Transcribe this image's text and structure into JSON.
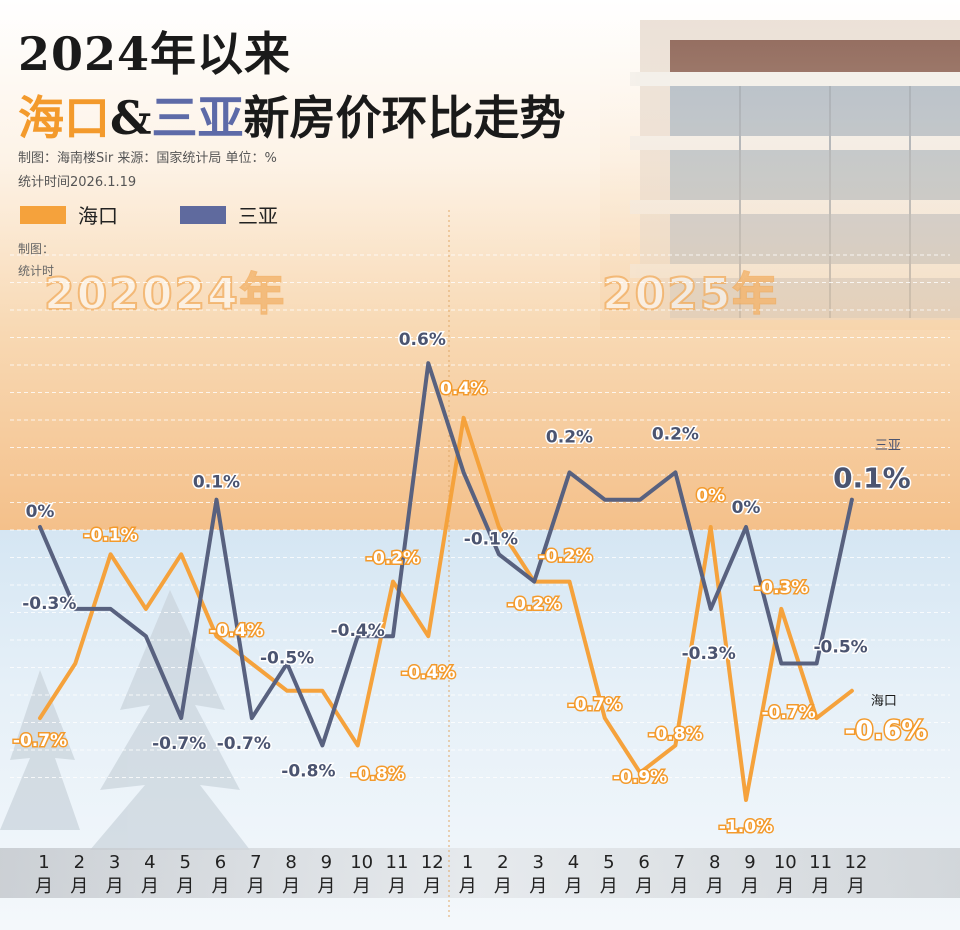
{
  "title": {
    "line1": "2024年以来",
    "haikou": "海口",
    "amp": "&",
    "sanya": "三亚",
    "rest": "新房价环比走势"
  },
  "meta": {
    "source_line": "制图：海南楼Sir   来源：国家统计局   单位：%",
    "stat_time": "统计时间2026.1.19",
    "ghost1": "制图：",
    "ghost2": "统计时"
  },
  "legend": [
    {
      "name": "海口",
      "color": "#f5a23c"
    },
    {
      "name": "三亚",
      "color": "#5f6a9e"
    }
  ],
  "year_labels": [
    "202024年",
    "2025年"
  ],
  "month_labels": [
    "1\n月",
    "2\n月",
    "3\n月",
    "4\n月",
    "5\n月",
    "6\n月",
    "7\n月",
    "8\n月",
    "9\n月",
    "10\n月",
    "11\n月",
    "12\n月",
    "1\n月",
    "2\n月",
    "3\n月",
    "4\n月",
    "5\n月",
    "6\n月",
    "7\n月",
    "8\n月",
    "9\n月",
    "10\n月",
    "11\n月",
    "12\n月"
  ],
  "colors": {
    "haikou": "#f5a23c",
    "sanya": "#58617f",
    "label_dark": "#4b5470",
    "label_orange": "#f39a2c"
  },
  "chart_data": {
    "type": "line",
    "title": "2024年以来海口&三亚新房价环比走势",
    "unit": "%",
    "x": [
      "2024-01",
      "2024-02",
      "2024-03",
      "2024-04",
      "2024-05",
      "2024-06",
      "2024-07",
      "2024-08",
      "2024-09",
      "2024-10",
      "2024-11",
      "2024-12",
      "2025-01",
      "2025-02",
      "2025-03",
      "2025-04",
      "2025-05",
      "2025-06",
      "2025-07",
      "2025-08",
      "2025-09",
      "2025-10",
      "2025-11",
      "2025-12"
    ],
    "ylim": [
      -1.2,
      0.8
    ],
    "series": [
      {
        "name": "海口",
        "color": "#f5a23c",
        "values": [
          -0.7,
          -0.5,
          -0.1,
          -0.3,
          -0.1,
          -0.4,
          -0.5,
          -0.6,
          -0.6,
          -0.8,
          -0.2,
          -0.4,
          0.4,
          0.0,
          -0.2,
          -0.2,
          -0.7,
          -0.9,
          -0.8,
          0.0,
          -1.0,
          -0.3,
          -0.7,
          -0.6
        ],
        "labels": [
          "-0.7%",
          "",
          "-0.1%",
          "",
          "",
          "-0.4%",
          "",
          "",
          "",
          "-0.8%",
          "-0.2%",
          "-0.4%",
          "0.4%",
          "",
          "-0.2%",
          "-0.2%",
          "-0.7%",
          "-0.9%",
          "-0.8%",
          "0%",
          "-1.0%",
          "-0.3%",
          "-0.7%",
          "-0.6%"
        ],
        "end_label": "海口"
      },
      {
        "name": "三亚",
        "color": "#58617f",
        "values": [
          0.0,
          -0.3,
          -0.3,
          -0.4,
          -0.7,
          0.1,
          -0.7,
          -0.5,
          -0.8,
          -0.4,
          -0.4,
          0.6,
          0.2,
          -0.1,
          -0.2,
          0.2,
          0.1,
          0.1,
          0.2,
          -0.3,
          0.0,
          -0.5,
          -0.5,
          0.1
        ],
        "labels": [
          "0%",
          "-0.3%",
          "",
          "",
          "-0.7%",
          "0.1%",
          "-0.7%",
          "-0.5%",
          "-0.8%",
          "-0.4%",
          "",
          "0.6%",
          "",
          "-0.1%",
          "",
          "0.2%",
          "",
          "",
          "0.2%",
          "-0.3%",
          "0%",
          "",
          "-0.5%",
          "0.1%"
        ],
        "end_label": "三亚"
      }
    ]
  }
}
